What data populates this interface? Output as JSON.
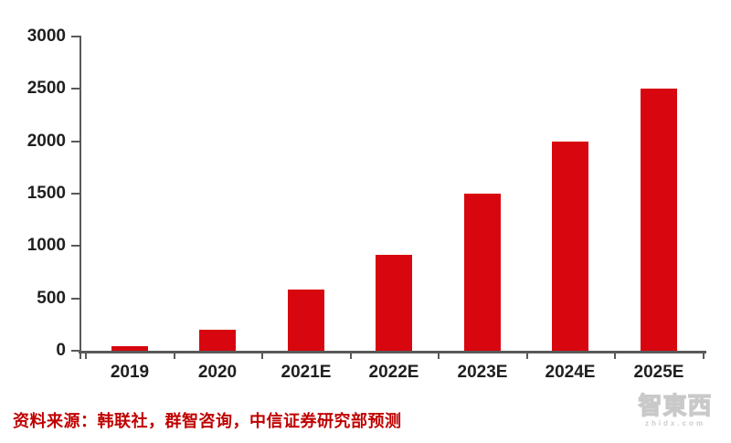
{
  "chart_data": {
    "type": "bar",
    "title": "",
    "xlabel": "",
    "ylabel": "",
    "categories": [
      "2019",
      "2020",
      "2021E",
      "2022E",
      "2023E",
      "2024E",
      "2025E"
    ],
    "values": [
      40,
      200,
      580,
      920,
      1500,
      2000,
      2500
    ],
    "ylim": [
      0,
      3000
    ],
    "yticks": [
      0,
      500,
      1000,
      1500,
      2000,
      2500,
      3000
    ],
    "ytick_labels": [
      "0",
      "500",
      "1000",
      "1500",
      "2000",
      "2500",
      "3000"
    ],
    "grid": false,
    "legend": "none",
    "bar_color": "#D8070F",
    "axis_color": "#595959",
    "tick_label_color": "#1f1f1f"
  },
  "footer": {
    "source_note": "资料来源：韩联社，群智咨询，中信证券研究部预测",
    "source_color": "#C00000"
  },
  "watermark": {
    "logo_text": "智東西",
    "domain": "zhidx.com"
  }
}
